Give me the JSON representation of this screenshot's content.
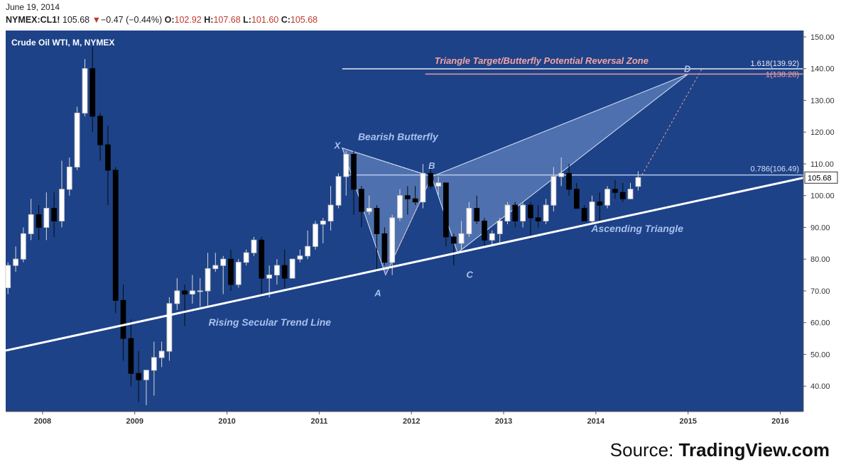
{
  "header": {
    "date": "June 19, 2014",
    "symbol": "NYMEX:CL1!",
    "last": "105.68",
    "change": "−0.47 (−0.44%)",
    "open_label": "O:",
    "open": "102.92",
    "high_label": "H:",
    "high": "107.68",
    "low_label": "L:",
    "low": "101.60",
    "close_label": "C:",
    "close": "105.68"
  },
  "source": {
    "prefix": "Source: ",
    "brand": "TradingView.com"
  },
  "colors": {
    "plot_bg": "#1d4288",
    "up": "#ffffff",
    "down": "#000000",
    "trendline": "#ffffff",
    "pattern_fill": "#5f80bb",
    "pattern_line": "#d7e1f3",
    "level_line": "#b6c8ec",
    "reversal_line": "#e89a9a",
    "reversal_text": "#f3a3a3",
    "label_text": "#a9c0ee"
  },
  "chart_data": {
    "type": "candlestick",
    "title": "Crude Oil WTI, M, NYMEX",
    "y_axis_position": "right",
    "ylim": [
      32,
      152
    ],
    "xlim": [
      2007.6,
      2016.25
    ],
    "x_ticks": [
      "2008",
      "2009",
      "2010",
      "2011",
      "2012",
      "2013",
      "2014",
      "2015",
      "2016"
    ],
    "y_ticks": [
      "40.00",
      "50.00",
      "60.00",
      "70.00",
      "80.00",
      "90.00",
      "100.00",
      "110.00",
      "120.00",
      "130.00",
      "140.00",
      "150.00"
    ],
    "last_price": "105.68",
    "candles": [
      [
        2007.583,
        71,
        79,
        69,
        78
      ],
      [
        2007.667,
        78,
        84,
        76,
        80
      ],
      [
        2007.75,
        80,
        90,
        79,
        88
      ],
      [
        2007.833,
        88,
        99,
        86,
        94
      ],
      [
        2007.917,
        94,
        97,
        86,
        90
      ],
      [
        2008.0,
        90,
        101,
        86,
        96
      ],
      [
        2008.083,
        96,
        101,
        87,
        92
      ],
      [
        2008.167,
        92,
        111,
        90,
        102
      ],
      [
        2008.25,
        102,
        112,
        100,
        109
      ],
      [
        2008.333,
        109,
        128,
        108,
        126
      ],
      [
        2008.417,
        126,
        143,
        125,
        140
      ],
      [
        2008.5,
        140,
        147,
        120,
        125
      ],
      [
        2008.583,
        125,
        126,
        111,
        116
      ],
      [
        2008.667,
        116,
        122,
        97,
        108
      ],
      [
        2008.75,
        108,
        109,
        63,
        67
      ],
      [
        2008.833,
        67,
        72,
        48,
        55
      ],
      [
        2008.917,
        55,
        61,
        40,
        44
      ],
      [
        2009.0,
        44,
        51,
        35,
        42
      ],
      [
        2009.083,
        42,
        45,
        34,
        45
      ],
      [
        2009.167,
        45,
        54,
        37,
        49
      ],
      [
        2009.25,
        49,
        54,
        46,
        51
      ],
      [
        2009.333,
        51,
        68,
        48,
        66
      ],
      [
        2009.417,
        66,
        74,
        64,
        70
      ],
      [
        2009.5,
        70,
        72,
        59,
        69
      ],
      [
        2009.583,
        69,
        75,
        66,
        70
      ],
      [
        2009.667,
        70,
        74,
        65,
        70
      ],
      [
        2009.75,
        70,
        82,
        65,
        77
      ],
      [
        2009.833,
        77,
        82,
        76,
        78
      ],
      [
        2009.917,
        78,
        81,
        69,
        80
      ],
      [
        2010.0,
        80,
        83,
        70,
        72
      ],
      [
        2010.083,
        72,
        80,
        71,
        79
      ],
      [
        2010.167,
        79,
        83,
        78,
        82
      ],
      [
        2010.25,
        82,
        87,
        81,
        86
      ],
      [
        2010.333,
        86,
        87,
        68,
        74
      ],
      [
        2010.417,
        74,
        78,
        68,
        75
      ],
      [
        2010.5,
        75,
        80,
        72,
        78
      ],
      [
        2010.583,
        78,
        83,
        71,
        74
      ],
      [
        2010.667,
        74,
        80,
        74,
        80
      ],
      [
        2010.75,
        80,
        83,
        79,
        81
      ],
      [
        2010.833,
        81,
        89,
        80,
        84
      ],
      [
        2010.917,
        84,
        92,
        83,
        91
      ],
      [
        2011.0,
        91,
        93,
        85,
        92
      ],
      [
        2011.083,
        92,
        103,
        89,
        97
      ],
      [
        2011.167,
        97,
        107,
        96,
        106
      ],
      [
        2011.25,
        106,
        114,
        100,
        113
      ],
      [
        2011.333,
        113,
        114,
        94,
        102
      ],
      [
        2011.417,
        102,
        103,
        90,
        95
      ],
      [
        2011.5,
        95,
        100,
        94,
        96
      ],
      [
        2011.583,
        96,
        97,
        76,
        88
      ],
      [
        2011.667,
        88,
        90,
        78,
        79
      ],
      [
        2011.75,
        79,
        94,
        75,
        93
      ],
      [
        2011.833,
        93,
        102,
        92,
        100
      ],
      [
        2011.917,
        100,
        103,
        94,
        99
      ],
      [
        2012.0,
        99,
        103,
        97,
        98
      ],
      [
        2012.083,
        98,
        110,
        96,
        107
      ],
      [
        2012.167,
        107,
        110,
        102,
        103
      ],
      [
        2012.25,
        103,
        106,
        100,
        104
      ],
      [
        2012.333,
        104,
        104,
        84,
        87
      ],
      [
        2012.417,
        87,
        88,
        78,
        85
      ],
      [
        2012.5,
        85,
        92,
        83,
        88
      ],
      [
        2012.583,
        88,
        98,
        87,
        96
      ],
      [
        2012.667,
        96,
        100,
        91,
        92
      ],
      [
        2012.75,
        92,
        93,
        84,
        86
      ],
      [
        2012.833,
        86,
        89,
        84,
        88
      ],
      [
        2012.917,
        88,
        93,
        85,
        92
      ],
      [
        2013.0,
        92,
        98,
        91,
        97
      ],
      [
        2013.083,
        97,
        98,
        90,
        92
      ],
      [
        2013.167,
        92,
        98,
        90,
        97
      ],
      [
        2013.25,
        97,
        98,
        86,
        93
      ],
      [
        2013.333,
        93,
        97,
        90,
        92
      ],
      [
        2013.417,
        92,
        99,
        91,
        97
      ],
      [
        2013.5,
        97,
        109,
        95,
        106
      ],
      [
        2013.583,
        106,
        112,
        103,
        107
      ],
      [
        2013.667,
        107,
        110,
        100,
        102
      ],
      [
        2013.75,
        102,
        104,
        96,
        96
      ],
      [
        2013.833,
        96,
        97,
        92,
        92
      ],
      [
        2013.917,
        92,
        100,
        91,
        98
      ],
      [
        2014.0,
        98,
        101,
        91,
        97
      ],
      [
        2014.083,
        97,
        103,
        96,
        102
      ],
      [
        2014.167,
        102,
        105,
        99,
        101
      ],
      [
        2014.25,
        101,
        104,
        98,
        99
      ],
      [
        2014.333,
        99,
        104,
        99,
        102
      ],
      [
        2014.417,
        102.92,
        107.68,
        101.6,
        105.68
      ]
    ],
    "annotations": {
      "secular_trendline_label": "Rising Secular Trend Line",
      "triangle_label": "Ascending Triangle",
      "butterfly_label": "Bearish Butterfly",
      "reversal_zone_label": "Triangle Target/Butterfly Potential Reversal Zone",
      "level_1618_label": "1.618(139.92)",
      "level_1_label": "1(138.28)",
      "level_0786_label": "0.786(106.49)",
      "point_x": "X",
      "point_a": "A",
      "point_b": "B",
      "point_c": "C",
      "point_d": "D"
    },
    "secular_trendline": [
      [
        2007.6,
        51.2
      ],
      [
        2016.25,
        105.6
      ]
    ],
    "levels": [
      139.92,
      138.28,
      106.49
    ],
    "pattern_points": {
      "X": [
        2011.25,
        115
      ],
      "A": [
        2011.72,
        75
      ],
      "B": [
        2012.22,
        106
      ],
      "C": [
        2012.5,
        82
      ],
      "D": [
        2015.0,
        138.3
      ]
    }
  }
}
